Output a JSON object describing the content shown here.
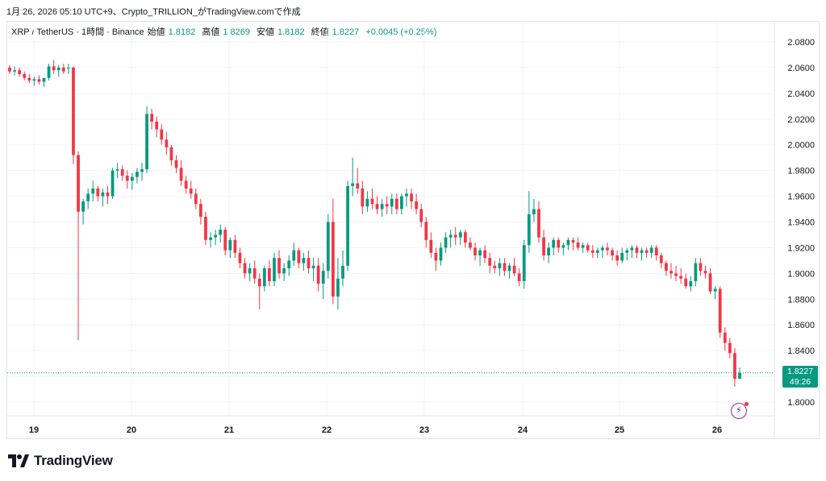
{
  "header": {
    "caption": "1月 26, 2026 05:10 UTC+9、Crypto_TRILLION_がTradingView.comで作成"
  },
  "legend": {
    "symbol": "XRP / TetherUS · 1時間 · Binance",
    "open_label": "始値",
    "open": "1.8182",
    "high_label": "高値",
    "high": "1.8269",
    "low_label": "安値",
    "low": "1.8182",
    "close_label": "終値",
    "close": "1.8227",
    "change": "+0.0045 (+0.25%)"
  },
  "price_badge": {
    "price": "1.8227",
    "countdown": "49:26"
  },
  "branding": {
    "name": "TradingView"
  },
  "colors": {
    "up": "#089981",
    "down": "#f23645",
    "grid": "#f0f3fa",
    "axis_text": "#131722",
    "accent": "#9c27b0"
  },
  "icons": {
    "alert": "lightning-icon",
    "logo": "tradingview-logo-icon"
  },
  "chart_data": {
    "type": "candlestick",
    "title": "XRP / TetherUS · 1時間 · Binance",
    "ylim": [
      1.79,
      2.09
    ],
    "y_ticks": [
      "2.0800",
      "2.0600",
      "2.0400",
      "2.0200",
      "2.0000",
      "1.9800",
      "1.9600",
      "1.9400",
      "1.9200",
      "1.9000",
      "1.8800",
      "1.8600",
      "1.8400",
      "1.8200",
      "1.8000"
    ],
    "x_ticks": [
      "19",
      "20",
      "21",
      "22",
      "23",
      "24",
      "25",
      "26"
    ],
    "last_price": 1.8227,
    "grid": true,
    "candles": [
      [
        2.06,
        2.062,
        2.055,
        2.057
      ],
      [
        2.057,
        2.061,
        2.054,
        2.058
      ],
      [
        2.058,
        2.06,
        2.053,
        2.055
      ],
      [
        2.055,
        2.057,
        2.05,
        2.052
      ],
      [
        2.052,
        2.055,
        2.048,
        2.05
      ],
      [
        2.05,
        2.053,
        2.046,
        2.051
      ],
      [
        2.051,
        2.054,
        2.047,
        2.049
      ],
      [
        2.049,
        2.052,
        2.045,
        2.052
      ],
      [
        2.052,
        2.063,
        2.05,
        2.061
      ],
      [
        2.061,
        2.066,
        2.055,
        2.058
      ],
      [
        2.058,
        2.062,
        2.053,
        2.06
      ],
      [
        2.06,
        2.063,
        2.055,
        2.057
      ],
      [
        2.06,
        2.063,
        2.055,
        2.06
      ],
      [
        2.06,
        2.061,
        1.985,
        1.992
      ],
      [
        1.992,
        1.995,
        1.848,
        1.948
      ],
      [
        1.948,
        1.958,
        1.938,
        1.956
      ],
      [
        1.956,
        1.966,
        1.95,
        1.962
      ],
      [
        1.962,
        1.972,
        1.956,
        1.966
      ],
      [
        1.966,
        1.968,
        1.956,
        1.96
      ],
      [
        1.96,
        1.966,
        1.952,
        1.963
      ],
      [
        1.963,
        1.968,
        1.954,
        1.96
      ],
      [
        1.96,
        1.982,
        1.958,
        1.98
      ],
      [
        1.98,
        1.986,
        1.974,
        1.981
      ],
      [
        1.981,
        1.984,
        1.972,
        1.976
      ],
      [
        1.976,
        1.98,
        1.966,
        1.972
      ],
      [
        1.972,
        1.978,
        1.965,
        1.975
      ],
      [
        1.975,
        1.982,
        1.97,
        1.979
      ],
      [
        1.979,
        1.986,
        1.972,
        1.981
      ],
      [
        1.981,
        2.03,
        1.978,
        2.024
      ],
      [
        2.024,
        2.028,
        2.012,
        2.018
      ],
      [
        2.018,
        2.022,
        2.006,
        2.012
      ],
      [
        2.012,
        2.016,
        2.0,
        2.004
      ],
      [
        2.004,
        2.01,
        1.992,
        1.998
      ],
      [
        1.998,
        2.0,
        1.984,
        1.988
      ],
      [
        1.988,
        1.992,
        1.978,
        1.982
      ],
      [
        1.982,
        1.988,
        1.968,
        1.972
      ],
      [
        1.972,
        1.976,
        1.962,
        1.966
      ],
      [
        1.966,
        1.972,
        1.958,
        1.962
      ],
      [
        1.962,
        1.966,
        1.95,
        1.954
      ],
      [
        1.954,
        1.958,
        1.938,
        1.944
      ],
      [
        1.944,
        1.948,
        1.922,
        1.926
      ],
      [
        1.926,
        1.932,
        1.92,
        1.928
      ],
      [
        1.928,
        1.934,
        1.922,
        1.93
      ],
      [
        1.93,
        1.938,
        1.924,
        1.934
      ],
      [
        1.934,
        1.936,
        1.914,
        1.918
      ],
      [
        1.918,
        1.928,
        1.912,
        1.926
      ],
      [
        1.926,
        1.93,
        1.912,
        1.916
      ],
      [
        1.916,
        1.92,
        1.904,
        1.908
      ],
      [
        1.908,
        1.912,
        1.896,
        1.9
      ],
      [
        1.9,
        1.908,
        1.894,
        1.904
      ],
      [
        1.904,
        1.91,
        1.892,
        1.896
      ],
      [
        1.896,
        1.9,
        1.872,
        1.89
      ],
      [
        1.89,
        1.906,
        1.886,
        1.904
      ],
      [
        1.904,
        1.91,
        1.89,
        1.894
      ],
      [
        1.894,
        1.916,
        1.89,
        1.912
      ],
      [
        1.912,
        1.918,
        1.896,
        1.9
      ],
      [
        1.9,
        1.908,
        1.894,
        1.904
      ],
      [
        1.904,
        1.914,
        1.898,
        1.91
      ],
      [
        1.91,
        1.924,
        1.906,
        1.918
      ],
      [
        1.918,
        1.92,
        1.904,
        1.908
      ],
      [
        1.908,
        1.916,
        1.902,
        1.912
      ],
      [
        1.912,
        1.918,
        1.9,
        1.904
      ],
      [
        1.904,
        1.912,
        1.894,
        1.906
      ],
      [
        1.906,
        1.912,
        1.886,
        1.892
      ],
      [
        1.892,
        1.908,
        1.88,
        1.902
      ],
      [
        1.902,
        1.946,
        1.896,
        1.94
      ],
      [
        1.94,
        1.958,
        1.876,
        1.882
      ],
      [
        1.882,
        1.912,
        1.872,
        1.896
      ],
      [
        1.896,
        1.918,
        1.89,
        1.906
      ],
      [
        1.906,
        1.972,
        1.902,
        1.968
      ],
      [
        1.968,
        1.99,
        1.96,
        1.97
      ],
      [
        1.97,
        1.982,
        1.962,
        1.966
      ],
      [
        1.966,
        1.972,
        1.946,
        1.952
      ],
      [
        1.952,
        1.964,
        1.948,
        1.958
      ],
      [
        1.958,
        1.966,
        1.95,
        1.954
      ],
      [
        1.954,
        1.96,
        1.946,
        1.95
      ],
      [
        1.95,
        1.958,
        1.944,
        1.954
      ],
      [
        1.954,
        1.96,
        1.946,
        1.952
      ],
      [
        1.952,
        1.962,
        1.946,
        1.958
      ],
      [
        1.958,
        1.962,
        1.946,
        1.95
      ],
      [
        1.95,
        1.962,
        1.946,
        1.96
      ],
      [
        1.96,
        1.966,
        1.952,
        1.962
      ],
      [
        1.962,
        1.966,
        1.95,
        1.956
      ],
      [
        1.956,
        1.962,
        1.946,
        1.95
      ],
      [
        1.95,
        1.954,
        1.936,
        1.94
      ],
      [
        1.94,
        1.944,
        1.92,
        1.926
      ],
      [
        1.926,
        1.932,
        1.912,
        1.916
      ],
      [
        1.916,
        1.92,
        1.902,
        1.91
      ],
      [
        1.91,
        1.924,
        1.906,
        1.92
      ],
      [
        1.92,
        1.932,
        1.916,
        1.928
      ],
      [
        1.928,
        1.934,
        1.92,
        1.93
      ],
      [
        1.93,
        1.936,
        1.922,
        1.928
      ],
      [
        1.928,
        1.934,
        1.922,
        1.932
      ],
      [
        1.932,
        1.934,
        1.92,
        1.924
      ],
      [
        1.924,
        1.928,
        1.918,
        1.92
      ],
      [
        1.92,
        1.924,
        1.91,
        1.914
      ],
      [
        1.914,
        1.92,
        1.906,
        1.918
      ],
      [
        1.918,
        1.922,
        1.908,
        1.912
      ],
      [
        1.912,
        1.916,
        1.9,
        1.906
      ],
      [
        1.906,
        1.91,
        1.9,
        1.904
      ],
      [
        1.904,
        1.912,
        1.898,
        1.908
      ],
      [
        1.908,
        1.912,
        1.898,
        1.902
      ],
      [
        1.902,
        1.908,
        1.896,
        1.906
      ],
      [
        1.906,
        1.912,
        1.898,
        1.9
      ],
      [
        1.9,
        1.904,
        1.89,
        1.894
      ],
      [
        1.894,
        1.926,
        1.888,
        1.922
      ],
      [
        1.922,
        1.964,
        1.916,
        1.946
      ],
      [
        1.946,
        1.958,
        1.94,
        1.95
      ],
      [
        1.95,
        1.956,
        1.924,
        1.928
      ],
      [
        1.928,
        1.934,
        1.91,
        1.914
      ],
      [
        1.914,
        1.924,
        1.908,
        1.92
      ],
      [
        1.92,
        1.928,
        1.914,
        1.926
      ],
      [
        1.926,
        1.928,
        1.916,
        1.92
      ],
      [
        1.92,
        1.924,
        1.914,
        1.922
      ],
      [
        1.922,
        1.928,
        1.918,
        1.926
      ],
      [
        1.926,
        1.928,
        1.918,
        1.924
      ],
      [
        1.924,
        1.928,
        1.918,
        1.92
      ],
      [
        1.92,
        1.924,
        1.916,
        1.922
      ],
      [
        1.922,
        1.924,
        1.916,
        1.918
      ],
      [
        1.918,
        1.922,
        1.912,
        1.916
      ],
      [
        1.916,
        1.92,
        1.912,
        1.918
      ],
      [
        1.918,
        1.922,
        1.912,
        1.92
      ],
      [
        1.92,
        1.924,
        1.914,
        1.918
      ],
      [
        1.918,
        1.92,
        1.91,
        1.914
      ],
      [
        1.914,
        1.918,
        1.906,
        1.91
      ],
      [
        1.91,
        1.92,
        1.908,
        1.916
      ],
      [
        1.916,
        1.92,
        1.91,
        1.918
      ],
      [
        1.918,
        1.922,
        1.912,
        1.92
      ],
      [
        1.92,
        1.922,
        1.912,
        1.916
      ],
      [
        1.916,
        1.92,
        1.91,
        1.918
      ],
      [
        1.918,
        1.92,
        1.912,
        1.916
      ],
      [
        1.916,
        1.922,
        1.912,
        1.92
      ],
      [
        1.92,
        1.922,
        1.91,
        1.914
      ],
      [
        1.914,
        1.916,
        1.904,
        1.908
      ],
      [
        1.908,
        1.91,
        1.898,
        1.902
      ],
      [
        1.902,
        1.908,
        1.896,
        1.9
      ],
      [
        1.9,
        1.906,
        1.894,
        1.898
      ],
      [
        1.898,
        1.904,
        1.892,
        1.896
      ],
      [
        1.896,
        1.9,
        1.888,
        1.89
      ],
      [
        1.89,
        1.898,
        1.886,
        1.894
      ],
      [
        1.894,
        1.912,
        1.89,
        1.908
      ],
      [
        1.908,
        1.912,
        1.898,
        1.902
      ],
      [
        1.902,
        1.906,
        1.896,
        1.9
      ],
      [
        1.9,
        1.904,
        1.884,
        1.886
      ],
      [
        1.886,
        1.89,
        1.88,
        1.888
      ],
      [
        1.888,
        1.89,
        1.85,
        1.854
      ],
      [
        1.854,
        1.858,
        1.84,
        1.846
      ],
      [
        1.846,
        1.85,
        1.834,
        1.838
      ],
      [
        1.838,
        1.842,
        1.812,
        1.818
      ],
      [
        1.818,
        1.8269,
        1.8182,
        1.8227
      ]
    ]
  }
}
